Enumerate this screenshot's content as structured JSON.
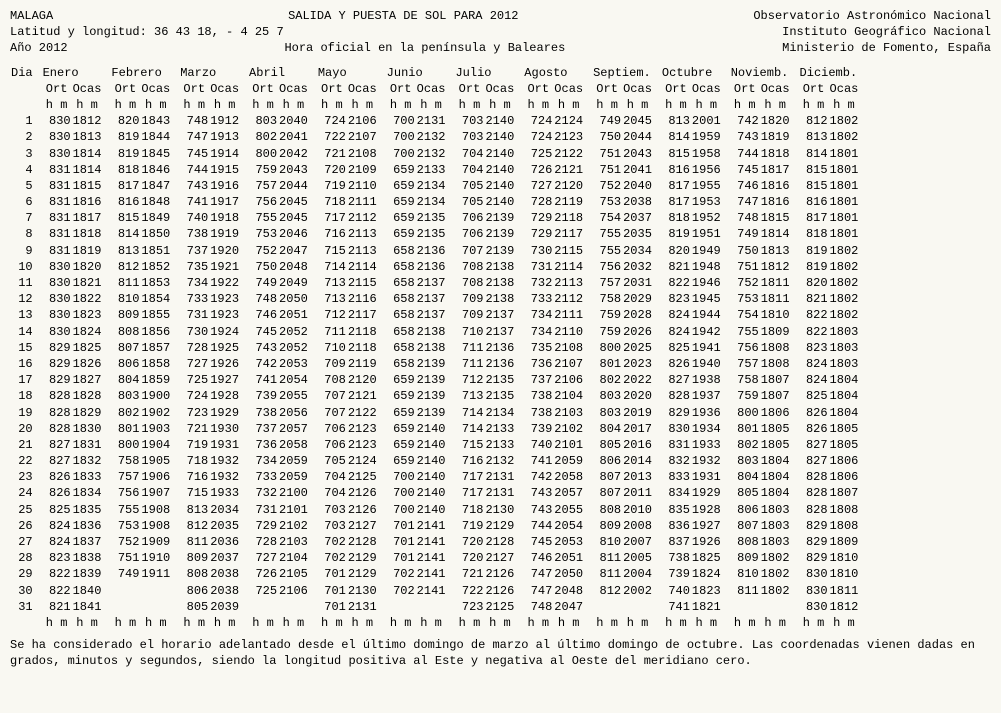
{
  "header": {
    "city": "MALAGA",
    "title": "SALIDA Y PUESTA DE SOL PARA 2012",
    "org1": "Observatorio Astronómico Nacional",
    "latlon_label": "Latitud y longitud: 36 43 18, - 4 25  7",
    "org2": "Instituto Geográfico Nacional",
    "year_label": "Año 2012",
    "tz_label": "Hora oficial en la península y Baleares",
    "org3": "Ministerio de Fomento, España"
  },
  "columns": {
    "day": "Dia",
    "ort": "Ort",
    "ocas": "Ocas",
    "hm": "h m"
  },
  "months": [
    "Enero",
    "Febrero",
    "Marzo",
    "Abril",
    "Mayo",
    "Junio",
    "Julio",
    "Agosto",
    "Septiem.",
    "Octubre",
    "Noviemb.",
    "Diciemb."
  ],
  "rows": [
    {
      "d": 1,
      "v": [
        "830",
        "1812",
        "820",
        "1843",
        "748",
        "1912",
        "803",
        "2040",
        "724",
        "2106",
        "700",
        "2131",
        "703",
        "2140",
        "724",
        "2124",
        "749",
        "2045",
        "813",
        "2001",
        "742",
        "1820",
        "812",
        "1802"
      ]
    },
    {
      "d": 2,
      "v": [
        "830",
        "1813",
        "819",
        "1844",
        "747",
        "1913",
        "802",
        "2041",
        "722",
        "2107",
        "700",
        "2132",
        "703",
        "2140",
        "724",
        "2123",
        "750",
        "2044",
        "814",
        "1959",
        "743",
        "1819",
        "813",
        "1802"
      ]
    },
    {
      "d": 3,
      "v": [
        "830",
        "1814",
        "819",
        "1845",
        "745",
        "1914",
        "800",
        "2042",
        "721",
        "2108",
        "700",
        "2132",
        "704",
        "2140",
        "725",
        "2122",
        "751",
        "2043",
        "815",
        "1958",
        "744",
        "1818",
        "814",
        "1801"
      ]
    },
    {
      "d": 4,
      "v": [
        "831",
        "1814",
        "818",
        "1846",
        "744",
        "1915",
        "759",
        "2043",
        "720",
        "2109",
        "659",
        "2133",
        "704",
        "2140",
        "726",
        "2121",
        "751",
        "2041",
        "816",
        "1956",
        "745",
        "1817",
        "815",
        "1801"
      ]
    },
    {
      "d": 5,
      "v": [
        "831",
        "1815",
        "817",
        "1847",
        "743",
        "1916",
        "757",
        "2044",
        "719",
        "2110",
        "659",
        "2134",
        "705",
        "2140",
        "727",
        "2120",
        "752",
        "2040",
        "817",
        "1955",
        "746",
        "1816",
        "815",
        "1801"
      ]
    },
    {
      "d": 6,
      "v": [
        "831",
        "1816",
        "816",
        "1848",
        "741",
        "1917",
        "756",
        "2045",
        "718",
        "2111",
        "659",
        "2134",
        "705",
        "2140",
        "728",
        "2119",
        "753",
        "2038",
        "817",
        "1953",
        "747",
        "1816",
        "816",
        "1801"
      ]
    },
    {
      "d": 7,
      "v": [
        "831",
        "1817",
        "815",
        "1849",
        "740",
        "1918",
        "755",
        "2045",
        "717",
        "2112",
        "659",
        "2135",
        "706",
        "2139",
        "729",
        "2118",
        "754",
        "2037",
        "818",
        "1952",
        "748",
        "1815",
        "817",
        "1801"
      ]
    },
    {
      "d": 8,
      "v": [
        "831",
        "1818",
        "814",
        "1850",
        "738",
        "1919",
        "753",
        "2046",
        "716",
        "2113",
        "659",
        "2135",
        "706",
        "2139",
        "729",
        "2117",
        "755",
        "2035",
        "819",
        "1951",
        "749",
        "1814",
        "818",
        "1801"
      ]
    },
    {
      "d": 9,
      "v": [
        "831",
        "1819",
        "813",
        "1851",
        "737",
        "1920",
        "752",
        "2047",
        "715",
        "2113",
        "658",
        "2136",
        "707",
        "2139",
        "730",
        "2115",
        "755",
        "2034",
        "820",
        "1949",
        "750",
        "1813",
        "819",
        "1802"
      ]
    },
    {
      "d": 10,
      "v": [
        "830",
        "1820",
        "812",
        "1852",
        "735",
        "1921",
        "750",
        "2048",
        "714",
        "2114",
        "658",
        "2136",
        "708",
        "2138",
        "731",
        "2114",
        "756",
        "2032",
        "821",
        "1948",
        "751",
        "1812",
        "819",
        "1802"
      ]
    },
    {
      "d": 11,
      "v": [
        "830",
        "1821",
        "811",
        "1853",
        "734",
        "1922",
        "749",
        "2049",
        "713",
        "2115",
        "658",
        "2137",
        "708",
        "2138",
        "732",
        "2113",
        "757",
        "2031",
        "822",
        "1946",
        "752",
        "1811",
        "820",
        "1802"
      ]
    },
    {
      "d": 12,
      "v": [
        "830",
        "1822",
        "810",
        "1854",
        "733",
        "1923",
        "748",
        "2050",
        "713",
        "2116",
        "658",
        "2137",
        "709",
        "2138",
        "733",
        "2112",
        "758",
        "2029",
        "823",
        "1945",
        "753",
        "1811",
        "821",
        "1802"
      ]
    },
    {
      "d": 13,
      "v": [
        "830",
        "1823",
        "809",
        "1855",
        "731",
        "1923",
        "746",
        "2051",
        "712",
        "2117",
        "658",
        "2137",
        "709",
        "2137",
        "734",
        "2111",
        "759",
        "2028",
        "824",
        "1944",
        "754",
        "1810",
        "822",
        "1802"
      ]
    },
    {
      "d": 14,
      "v": [
        "830",
        "1824",
        "808",
        "1856",
        "730",
        "1924",
        "745",
        "2052",
        "711",
        "2118",
        "658",
        "2138",
        "710",
        "2137",
        "734",
        "2110",
        "759",
        "2026",
        "824",
        "1942",
        "755",
        "1809",
        "822",
        "1803"
      ]
    },
    {
      "d": 15,
      "v": [
        "829",
        "1825",
        "807",
        "1857",
        "728",
        "1925",
        "743",
        "2052",
        "710",
        "2118",
        "658",
        "2138",
        "711",
        "2136",
        "735",
        "2108",
        "800",
        "2025",
        "825",
        "1941",
        "756",
        "1808",
        "823",
        "1803"
      ]
    },
    {
      "d": 16,
      "v": [
        "829",
        "1826",
        "806",
        "1858",
        "727",
        "1926",
        "742",
        "2053",
        "709",
        "2119",
        "658",
        "2139",
        "711",
        "2136",
        "736",
        "2107",
        "801",
        "2023",
        "826",
        "1940",
        "757",
        "1808",
        "824",
        "1803"
      ]
    },
    {
      "d": 17,
      "v": [
        "829",
        "1827",
        "804",
        "1859",
        "725",
        "1927",
        "741",
        "2054",
        "708",
        "2120",
        "659",
        "2139",
        "712",
        "2135",
        "737",
        "2106",
        "802",
        "2022",
        "827",
        "1938",
        "758",
        "1807",
        "824",
        "1804"
      ]
    },
    {
      "d": 18,
      "v": [
        "828",
        "1828",
        "803",
        "1900",
        "724",
        "1928",
        "739",
        "2055",
        "707",
        "2121",
        "659",
        "2139",
        "713",
        "2135",
        "738",
        "2104",
        "803",
        "2020",
        "828",
        "1937",
        "759",
        "1807",
        "825",
        "1804"
      ]
    },
    {
      "d": 19,
      "v": [
        "828",
        "1829",
        "802",
        "1902",
        "723",
        "1929",
        "738",
        "2056",
        "707",
        "2122",
        "659",
        "2139",
        "714",
        "2134",
        "738",
        "2103",
        "803",
        "2019",
        "829",
        "1936",
        "800",
        "1806",
        "826",
        "1804"
      ]
    },
    {
      "d": 20,
      "v": [
        "828",
        "1830",
        "801",
        "1903",
        "721",
        "1930",
        "737",
        "2057",
        "706",
        "2123",
        "659",
        "2140",
        "714",
        "2133",
        "739",
        "2102",
        "804",
        "2017",
        "830",
        "1934",
        "801",
        "1805",
        "826",
        "1805"
      ]
    },
    {
      "d": 21,
      "v": [
        "827",
        "1831",
        "800",
        "1904",
        "719",
        "1931",
        "736",
        "2058",
        "706",
        "2123",
        "659",
        "2140",
        "715",
        "2133",
        "740",
        "2101",
        "805",
        "2016",
        "831",
        "1933",
        "802",
        "1805",
        "827",
        "1805"
      ]
    },
    {
      "d": 22,
      "v": [
        "827",
        "1832",
        "758",
        "1905",
        "718",
        "1932",
        "734",
        "2059",
        "705",
        "2124",
        "659",
        "2140",
        "716",
        "2132",
        "741",
        "2059",
        "806",
        "2014",
        "832",
        "1932",
        "803",
        "1804",
        "827",
        "1806"
      ]
    },
    {
      "d": 23,
      "v": [
        "826",
        "1833",
        "757",
        "1906",
        "716",
        "1932",
        "733",
        "2059",
        "704",
        "2125",
        "700",
        "2140",
        "717",
        "2131",
        "742",
        "2058",
        "807",
        "2013",
        "833",
        "1931",
        "804",
        "1804",
        "828",
        "1806"
      ]
    },
    {
      "d": 24,
      "v": [
        "826",
        "1834",
        "756",
        "1907",
        "715",
        "1933",
        "732",
        "2100",
        "704",
        "2126",
        "700",
        "2140",
        "717",
        "2131",
        "743",
        "2057",
        "807",
        "2011",
        "834",
        "1929",
        "805",
        "1804",
        "828",
        "1807"
      ]
    },
    {
      "d": 25,
      "v": [
        "825",
        "1835",
        "755",
        "1908",
        "813",
        "2034",
        "731",
        "2101",
        "703",
        "2126",
        "700",
        "2140",
        "718",
        "2130",
        "743",
        "2055",
        "808",
        "2010",
        "835",
        "1928",
        "806",
        "1803",
        "828",
        "1808"
      ]
    },
    {
      "d": 26,
      "v": [
        "824",
        "1836",
        "753",
        "1908",
        "812",
        "2035",
        "729",
        "2102",
        "703",
        "2127",
        "701",
        "2141",
        "719",
        "2129",
        "744",
        "2054",
        "809",
        "2008",
        "836",
        "1927",
        "807",
        "1803",
        "829",
        "1808"
      ]
    },
    {
      "d": 27,
      "v": [
        "824",
        "1837",
        "752",
        "1909",
        "811",
        "2036",
        "728",
        "2103",
        "702",
        "2128",
        "701",
        "2141",
        "720",
        "2128",
        "745",
        "2053",
        "810",
        "2007",
        "837",
        "1926",
        "808",
        "1803",
        "829",
        "1809"
      ]
    },
    {
      "d": 28,
      "v": [
        "823",
        "1838",
        "751",
        "1910",
        "809",
        "2037",
        "727",
        "2104",
        "702",
        "2129",
        "701",
        "2141",
        "720",
        "2127",
        "746",
        "2051",
        "811",
        "2005",
        "738",
        "1825",
        "809",
        "1802",
        "829",
        "1810"
      ]
    },
    {
      "d": 29,
      "v": [
        "822",
        "1839",
        "749",
        "1911",
        "808",
        "2038",
        "726",
        "2105",
        "701",
        "2129",
        "702",
        "2141",
        "721",
        "2126",
        "747",
        "2050",
        "811",
        "2004",
        "739",
        "1824",
        "810",
        "1802",
        "830",
        "1810"
      ]
    },
    {
      "d": 30,
      "v": [
        "822",
        "1840",
        "",
        "",
        "806",
        "2038",
        "725",
        "2106",
        "701",
        "2130",
        "702",
        "2141",
        "722",
        "2126",
        "747",
        "2048",
        "812",
        "2002",
        "740",
        "1823",
        "811",
        "1802",
        "830",
        "1811"
      ]
    },
    {
      "d": 31,
      "v": [
        "821",
        "1841",
        "",
        "",
        "805",
        "2039",
        "",
        "",
        "701",
        "2131",
        "",
        "",
        "723",
        "2125",
        "748",
        "2047",
        "",
        "",
        "741",
        "1821",
        "",
        "",
        "830",
        "1812"
      ]
    }
  ],
  "footer": "Se ha considerado el horario adelantado desde el último domingo de marzo al último domingo de octubre. Las coordenadas vienen dadas en grados, minutos y segundos, siendo la longitud positiva al Este y negativa al Oeste del meridiano cero."
}
